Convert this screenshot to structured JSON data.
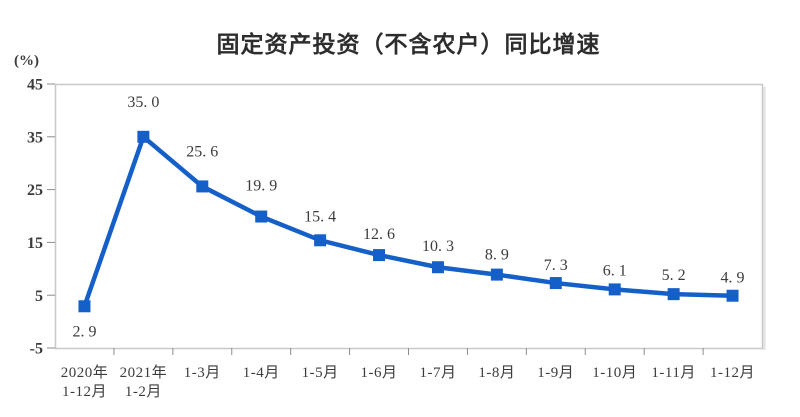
{
  "chart_data": {
    "type": "line",
    "title": "固定资产投资（不含农户）同比增速",
    "unit_label": "(%)",
    "categories": [
      [
        "2020年",
        "1-12月"
      ],
      [
        "2021年",
        "1-2月"
      ],
      [
        "1-3月"
      ],
      [
        "1-4月"
      ],
      [
        "1-5月"
      ],
      [
        "1-6月"
      ],
      [
        "1-7月"
      ],
      [
        "1-8月"
      ],
      [
        "1-9月"
      ],
      [
        "1-10月"
      ],
      [
        "1-11月"
      ],
      [
        "1-12月"
      ]
    ],
    "values": [
      2.9,
      35.0,
      25.6,
      19.9,
      15.4,
      12.6,
      10.3,
      8.9,
      7.3,
      6.1,
      5.2,
      4.9
    ],
    "data_labels": [
      "2.9",
      "35.0",
      "25.6",
      "19.9",
      "15.4",
      "12.6",
      "10.3",
      "8.9",
      "7.3",
      "6.1",
      "5.2",
      "4.9"
    ],
    "ylim": [
      -5,
      45
    ],
    "yticks": [
      45,
      35,
      25,
      15,
      5,
      -5
    ],
    "grid": false,
    "legend": "none",
    "marker": "square",
    "colors": {
      "line": "#1560c8",
      "text": "#3c3c3c",
      "frame": "#c8c8c8",
      "tick": "#8c8c8c"
    }
  }
}
